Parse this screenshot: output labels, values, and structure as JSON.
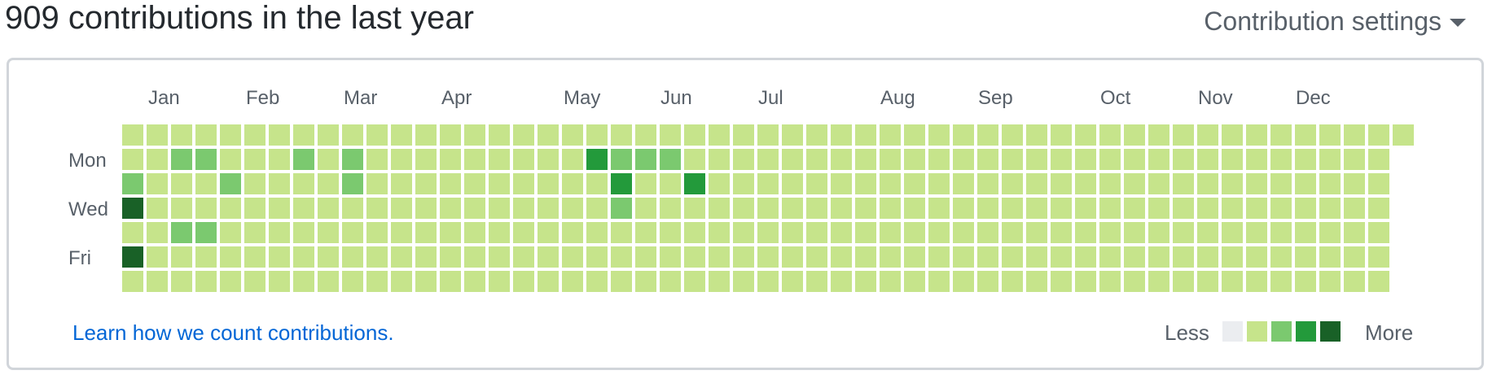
{
  "header": {
    "title": "909 contributions in the last year",
    "settings_label": "Contribution settings"
  },
  "months": [
    "Jan",
    "Feb",
    "Mar",
    "Apr",
    "May",
    "Jun",
    "Jul",
    "Aug",
    "Sep",
    "Oct",
    "Nov",
    "Dec"
  ],
  "days": [
    "Mon",
    "Wed",
    "Fri"
  ],
  "footer": {
    "learn_link": "Learn how we count contributions.",
    "less_label": "Less",
    "more_label": "More"
  },
  "colors": {
    "levels": [
      "#ebedf0",
      "#c6e48b",
      "#7bc96f",
      "#239a3b",
      "#196127"
    ],
    "link": "#0366d6",
    "border": "#d1d5da"
  },
  "calendar": {
    "weeks": 53,
    "grid": [
      "22222222222222222222222222222222222222222222222222222",
      "2233222323222222222433322222222222222222222222222222",
      "3222322223222222222242242222222222222222222222222222",
      "5222222222222222222232222222222222222222222222222222",
      "2233222222222222222222222222222222222222222222222222",
      "5222222222222222222222222222222222222222222222222222",
      "2222222222222222222222222222222222222222222222222222"
    ]
  }
}
